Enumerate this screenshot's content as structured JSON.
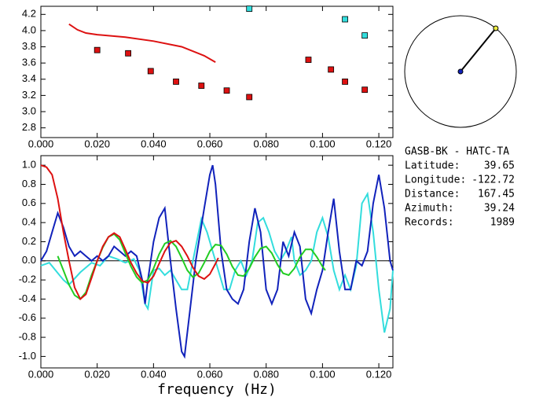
{
  "chart_data": [
    {
      "type": "scatter",
      "xlim": [
        0,
        0.125
      ],
      "ylim": [
        2.68,
        4.3
      ],
      "xticks": [
        {
          "value": 0,
          "label": "0.000"
        },
        {
          "value": 0.02,
          "label": "0.020"
        },
        {
          "value": 0.04,
          "label": "0.040"
        },
        {
          "value": 0.06,
          "label": "0.060"
        },
        {
          "value": 0.08,
          "label": "0.080"
        },
        {
          "value": 0.1,
          "label": "0.100"
        },
        {
          "value": 0.12,
          "label": "0.120"
        }
      ],
      "yticks": [
        {
          "value": 2.8,
          "label": "2.8"
        },
        {
          "value": 3,
          "label": "3.0"
        },
        3.2,
        3.4,
        3.6,
        3.8,
        {
          "value": 4,
          "label": "4.0"
        },
        4.2
      ],
      "series": [
        {
          "kind": "markers",
          "color": "#dd1111",
          "x": [
            0.02,
            0.031,
            0.039,
            0.048,
            0.057,
            0.066,
            0.074,
            0.095,
            0.103,
            0.108,
            0.115
          ],
          "values": [
            3.76,
            3.72,
            3.5,
            3.37,
            3.32,
            3.26,
            3.18,
            3.64,
            3.52,
            3.37,
            3.27
          ]
        },
        {
          "kind": "markers",
          "color": "#33dddd",
          "x": [
            0.074,
            0.108,
            0.115
          ],
          "values": [
            4.27,
            4.14,
            3.94
          ]
        },
        {
          "kind": "line",
          "color": "#dd1111",
          "x": [
            0.01,
            0.013,
            0.016,
            0.02,
            0.03,
            0.04,
            0.05,
            0.058,
            0.062
          ],
          "values": [
            4.08,
            4.01,
            3.97,
            3.95,
            3.92,
            3.87,
            3.8,
            3.69,
            3.61
          ]
        }
      ]
    },
    {
      "type": "line",
      "xlabel": "frequency (Hz)",
      "zero_line": true,
      "xlim": [
        0,
        0.125
      ],
      "ylim": [
        -1.12,
        1.1
      ],
      "xticks": [
        {
          "value": 0,
          "label": "0.000"
        },
        {
          "value": 0.02,
          "label": "0.020"
        },
        {
          "value": 0.04,
          "label": "0.040"
        },
        {
          "value": 0.06,
          "label": "0.060"
        },
        {
          "value": 0.08,
          "label": "0.080"
        },
        {
          "value": 0.1,
          "label": "0.100"
        },
        {
          "value": 0.12,
          "label": "0.120"
        }
      ],
      "yticks": [
        {
          "value": -1,
          "label": "-1.0"
        },
        -0.8,
        -0.6,
        -0.4,
        -0.2,
        {
          "value": 0,
          "label": "0.0"
        },
        0.2,
        0.4,
        0.6,
        0.8,
        {
          "value": 1,
          "label": "1.0"
        }
      ],
      "series": [
        {
          "color": "#33dddd",
          "x": [
            0,
            0.003,
            0.008,
            0.01,
            0.014,
            0.018,
            0.021,
            0.024,
            0.027,
            0.03,
            0.033,
            0.035,
            0.037,
            0.038,
            0.04,
            0.042,
            0.044,
            0.046,
            0.048,
            0.05,
            0.052,
            0.054,
            0.057,
            0.059,
            0.061,
            0.063,
            0.065,
            0.067,
            0.069,
            0.071,
            0.073,
            0.075,
            0.077,
            0.079,
            0.081,
            0.083,
            0.085,
            0.087,
            0.089,
            0.09,
            0.092,
            0.094,
            0.096,
            0.098,
            0.1,
            0.102,
            0.104,
            0.106,
            0.108,
            0.11,
            0.112,
            0.114,
            0.116,
            0.118,
            0.12,
            0.122,
            0.124,
            0.125
          ],
          "values": [
            -0.05,
            -0.02,
            -0.2,
            -0.25,
            -0.12,
            -0.02,
            -0.05,
            0.05,
            0.02,
            -0.02,
            0.02,
            -0.1,
            -0.45,
            -0.5,
            -0.1,
            -0.08,
            -0.15,
            -0.1,
            -0.2,
            -0.3,
            -0.3,
            0,
            0.44,
            0.3,
            0.1,
            -0.1,
            -0.3,
            -0.3,
            -0.1,
            0,
            -0.15,
            0,
            0.4,
            0.45,
            0.3,
            0.1,
            0,
            0.1,
            0.25,
            0,
            -0.15,
            -0.1,
            0,
            0.3,
            0.45,
            0.25,
            -0.1,
            -0.3,
            -0.15,
            -0.3,
            -0.05,
            0.6,
            0.7,
            0.3,
            -0.3,
            -0.75,
            -0.5,
            -0.1
          ]
        },
        {
          "color": "#1122bb",
          "x": [
            0,
            0.002,
            0.004,
            0.006,
            0.008,
            0.01,
            0.012,
            0.014,
            0.016,
            0.018,
            0.02,
            0.022,
            0.024,
            0.026,
            0.028,
            0.03,
            0.032,
            0.034,
            0.036,
            0.037,
            0.038,
            0.04,
            0.042,
            0.044,
            0.046,
            0.048,
            0.05,
            0.051,
            0.053,
            0.055,
            0.058,
            0.06,
            0.061,
            0.062,
            0.064,
            0.066,
            0.068,
            0.07,
            0.072,
            0.074,
            0.076,
            0.078,
            0.08,
            0.082,
            0.084,
            0.086,
            0.088,
            0.09,
            0.092,
            0.094,
            0.096,
            0.098,
            0.1,
            0.102,
            0.104,
            0.106,
            0.108,
            0.11,
            0.112,
            0.114,
            0.116,
            0.118,
            0.12,
            0.122,
            0.124,
            0.125
          ],
          "values": [
            0,
            0.1,
            0.3,
            0.5,
            0.35,
            0.15,
            0.05,
            0.1,
            0.05,
            0,
            0.05,
            0,
            0.05,
            0.15,
            0.1,
            0.05,
            0.1,
            0.05,
            -0.2,
            -0.45,
            -0.2,
            0.2,
            0.45,
            0.55,
            0,
            -0.5,
            -0.95,
            -1,
            -0.5,
            0,
            0.55,
            0.9,
            1,
            0.8,
            0.1,
            -0.3,
            -0.4,
            -0.45,
            -0.3,
            0.2,
            0.55,
            0.3,
            -0.3,
            -0.45,
            -0.3,
            0.2,
            0.05,
            0.3,
            0.15,
            -0.4,
            -0.55,
            -0.3,
            -0.1,
            0.3,
            0.65,
            0.1,
            -0.3,
            -0.3,
            0,
            -0.05,
            0.1,
            0.6,
            0.9,
            0.55,
            0,
            -0.1
          ]
        },
        {
          "color": "#22cc22",
          "x": [
            0.006,
            0.008,
            0.01,
            0.012,
            0.014,
            0.016,
            0.018,
            0.02,
            0.022,
            0.024,
            0.026,
            0.028,
            0.03,
            0.032,
            0.034,
            0.036,
            0.038,
            0.04,
            0.042,
            0.044,
            0.046,
            0.048,
            0.05,
            0.052,
            0.054,
            0.056,
            0.058,
            0.06,
            0.062,
            0.064,
            0.066,
            0.068,
            0.07,
            0.072,
            0.074,
            0.076,
            0.078,
            0.08,
            0.082,
            0.084,
            0.086,
            0.088,
            0.09,
            0.092,
            0.094,
            0.096,
            0.098,
            0.1,
            0.101
          ],
          "values": [
            0.05,
            -0.1,
            -0.25,
            -0.36,
            -0.4,
            -0.33,
            -0.15,
            0,
            0.14,
            0.25,
            0.28,
            0.22,
            0.08,
            -0.06,
            -0.17,
            -0.23,
            -0.2,
            -0.08,
            0.07,
            0.18,
            0.21,
            0.15,
            0.03,
            -0.1,
            -0.17,
            -0.13,
            -0.02,
            0.1,
            0.17,
            0.16,
            0.07,
            -0.06,
            -0.15,
            -0.16,
            -0.08,
            0.04,
            0.13,
            0.15,
            0.08,
            -0.04,
            -0.13,
            -0.15,
            -0.08,
            0.04,
            0.12,
            0.12,
            0.04,
            -0.06,
            -0.1
          ]
        },
        {
          "color": "#dd1111",
          "x": [
            0,
            0.002,
            0.004,
            0.006,
            0.008,
            0.01,
            0.012,
            0.014,
            0.016,
            0.018,
            0.02,
            0.022,
            0.024,
            0.026,
            0.028,
            0.03,
            0.032,
            0.034,
            0.036,
            0.038,
            0.04,
            0.042,
            0.044,
            0.046,
            0.048,
            0.05,
            0.052,
            0.054,
            0.056,
            0.058,
            0.06,
            0.062,
            0.063
          ],
          "values": [
            1,
            0.98,
            0.9,
            0.65,
            0.3,
            0,
            -0.28,
            -0.4,
            -0.35,
            -0.18,
            0,
            0.15,
            0.25,
            0.29,
            0.25,
            0.12,
            -0.02,
            -0.13,
            -0.21,
            -0.23,
            -0.16,
            -0.03,
            0.1,
            0.19,
            0.21,
            0.15,
            0.05,
            -0.07,
            -0.16,
            -0.19,
            -0.14,
            -0.03,
            0.03
          ]
        }
      ]
    }
  ],
  "station": {
    "title": "GASB-BK - HATC-TA",
    "fields": [
      {
        "label": "Latitude:",
        "value": 39.65
      },
      {
        "label": "Longitude:",
        "value": -122.72
      },
      {
        "label": "Distance:",
        "value": 167.45
      },
      {
        "label": "Azimuth:",
        "value": 39.24
      },
      {
        "label": "Records:",
        "value": 1989
      }
    ]
  }
}
